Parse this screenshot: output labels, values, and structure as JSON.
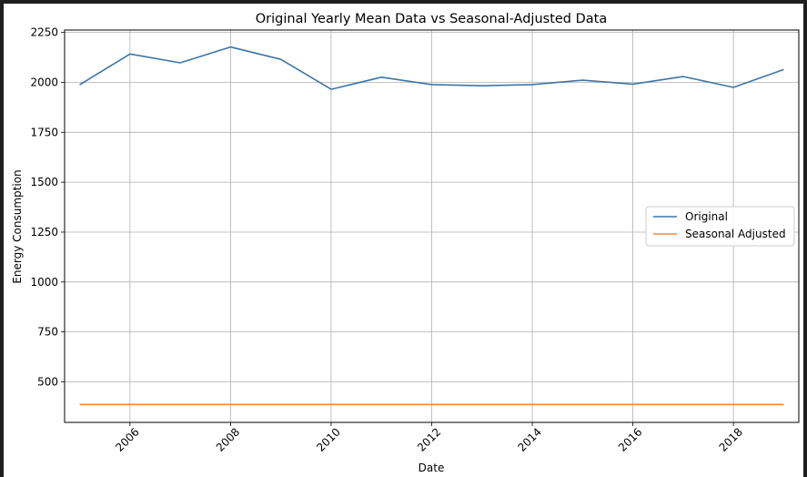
{
  "chart_data": {
    "type": "line",
    "title": "Original Yearly Mean Data vs Seasonal-Adjusted Data",
    "xlabel": "Date",
    "ylabel": "Energy Consumption",
    "xlim": [
      2004.7,
      2019.3
    ],
    "ylim": [
      297,
      2262
    ],
    "xticks": [
      2006,
      2008,
      2010,
      2012,
      2014,
      2016,
      2018
    ],
    "yticks": [
      500,
      750,
      1000,
      1250,
      1500,
      1750,
      2000,
      2250
    ],
    "grid": true,
    "legend_position": "center-right",
    "x": [
      2005,
      2006,
      2007,
      2008,
      2009,
      2010,
      2011,
      2012,
      2013,
      2014,
      2015,
      2016,
      2017,
      2018,
      2019
    ],
    "series": [
      {
        "name": "Original",
        "color": "#3e75a8",
        "values": [
          1988,
          2142,
          2098,
          2177,
          2115,
          1965,
          2026,
          1989,
          1983,
          1989,
          2011,
          1991,
          2029,
          1975,
          2064
        ]
      },
      {
        "name": "Seasonal Adjusted",
        "color": "#f08a3e",
        "values": [
          387,
          387,
          387,
          387,
          387,
          387,
          387,
          387,
          387,
          387,
          387,
          387,
          387,
          387,
          387
        ]
      }
    ]
  }
}
